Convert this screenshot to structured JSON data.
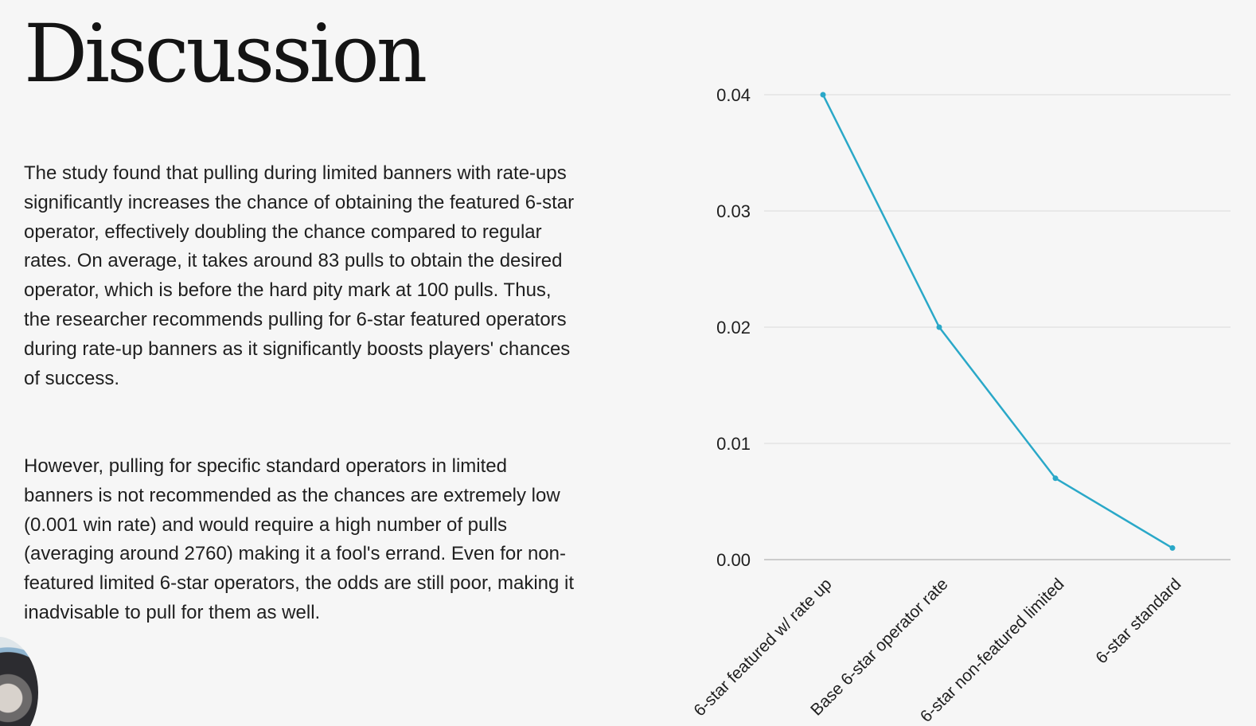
{
  "slide": {
    "title": "Discussion",
    "paragraphs": [
      "The study found that pulling during limited banners with rate-ups significantly increases the chance of obtaining the featured 6-star operator, effectively doubling the chance compared to regular rates. On average, it takes around 83 pulls to obtain the desired operator, which is before the hard pity mark at 100 pulls. Thus, the researcher recommends pulling for 6-star featured operators during rate-up banners as it significantly boosts players' chances of success.",
      "However, pulling for specific standard operators in limited banners is not recommended as the chances are extremely low (0.001 win rate) and would require a high number of pulls (averaging around 2760) making it a fool's errand. Even for non-featured limited 6-star operators, the odds are still poor, making it inadvisable to pull for them as well."
    ]
  },
  "chart_data": {
    "type": "line",
    "categories": [
      "6-star featured w/ rate up",
      "Base 6-star operator rate",
      "6-star non-featured limited",
      "6-star standard"
    ],
    "series": [
      {
        "values": [
          0.04,
          0.02,
          0.007,
          0.001
        ],
        "color": "#2aa8c8"
      }
    ],
    "ylim": [
      0,
      0.04
    ],
    "yticks": [
      "0.00",
      "0.01",
      "0.02",
      "0.03",
      "0.04"
    ],
    "grid": true,
    "gridColor": "#d9d9d9",
    "axisColor": "#bdbdbd",
    "labelColor": "#1f1f1f"
  },
  "presenter": {
    "avatar": "presenter-webcam-avatar"
  }
}
